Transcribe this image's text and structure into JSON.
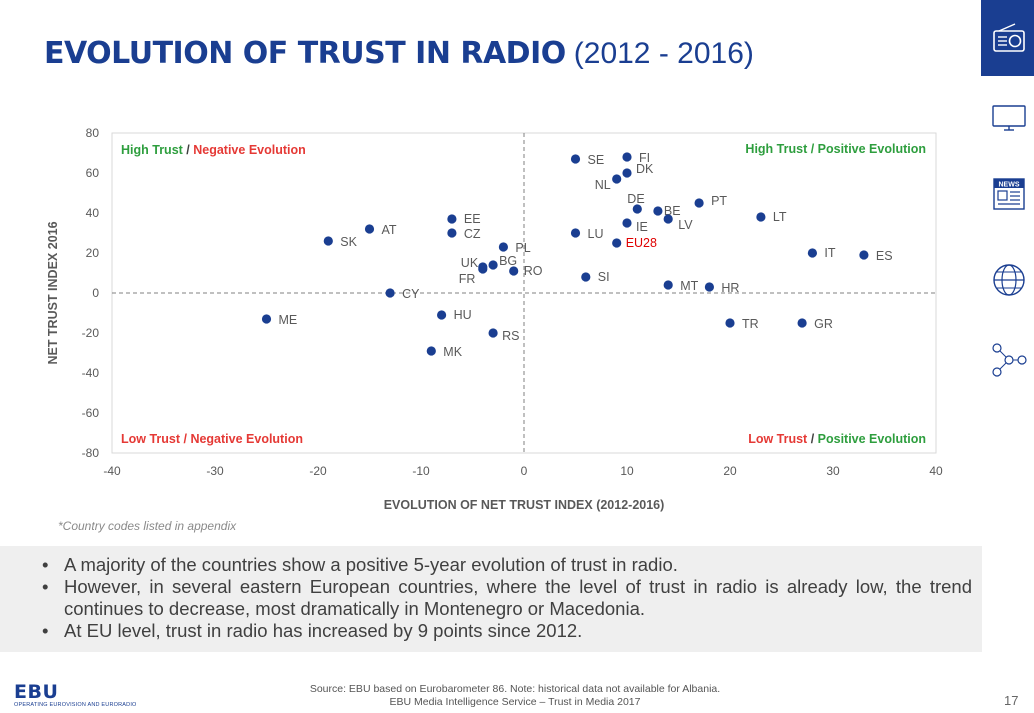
{
  "title": {
    "main": "EVOLUTION OF TRUST IN RADIO",
    "sub": "(2012 - 2016)"
  },
  "sidebar": {
    "icons": [
      "radio-icon",
      "tv-icon",
      "news-icon",
      "globe-icon",
      "social-network-icon"
    ],
    "news_label": "NEWS"
  },
  "chart_data": {
    "type": "scatter",
    "xlabel": "EVOLUTION OF NET TRUST INDEX (2012-2016)",
    "ylabel": "NET TRUST INDEX 2016",
    "xlim": [
      -40,
      40
    ],
    "ylim": [
      -80,
      80
    ],
    "xticks": [
      -40,
      -30,
      -20,
      -10,
      0,
      10,
      20,
      30,
      40
    ],
    "yticks": [
      80,
      60,
      40,
      20,
      0,
      -20,
      -40,
      -60,
      -80
    ],
    "grid": false,
    "reference_lines": {
      "x": 0,
      "y": 0,
      "style": "dashed"
    },
    "point_color": "#1a3e91",
    "highlight_color": "#e00000",
    "quadrant_labels": [
      {
        "pos": "top-left",
        "parts": [
          {
            "text": "High Trust",
            "color": "#2e9e3e"
          },
          {
            "text": " / ",
            "color": "#404040"
          },
          {
            "text": "Negative Evolution",
            "color": "#e53935"
          }
        ]
      },
      {
        "pos": "top-right",
        "parts": [
          {
            "text": "High Trust / Positive Evolution",
            "color": "#2e9e3e"
          }
        ]
      },
      {
        "pos": "bottom-left",
        "parts": [
          {
            "text": "Low Trust / Negative Evolution",
            "color": "#e53935"
          }
        ]
      },
      {
        "pos": "bottom-right",
        "parts": [
          {
            "text": "Low Trust",
            "color": "#e53935"
          },
          {
            "text": " / ",
            "color": "#404040"
          },
          {
            "text": "Positive Evolution",
            "color": "#2e9e3e"
          }
        ]
      }
    ],
    "points": [
      {
        "label": "SE",
        "x": 5,
        "y": 67
      },
      {
        "label": "FI",
        "x": 10,
        "y": 68
      },
      {
        "label": "DK",
        "x": 10,
        "y": 60
      },
      {
        "label": "NL",
        "x": 9,
        "y": 57
      },
      {
        "label": "DE",
        "x": 11,
        "y": 42
      },
      {
        "label": "BE",
        "x": 13,
        "y": 41
      },
      {
        "label": "PT",
        "x": 17,
        "y": 45
      },
      {
        "label": "LT",
        "x": 23,
        "y": 38
      },
      {
        "label": "LV",
        "x": 14,
        "y": 37
      },
      {
        "label": "IE",
        "x": 10,
        "y": 35
      },
      {
        "label": "LU",
        "x": 5,
        "y": 30
      },
      {
        "label": "EU28",
        "x": 9,
        "y": 25,
        "highlight": true
      },
      {
        "label": "IT",
        "x": 28,
        "y": 20
      },
      {
        "label": "ES",
        "x": 33,
        "y": 19
      },
      {
        "label": "SI",
        "x": 6,
        "y": 8
      },
      {
        "label": "MT",
        "x": 14,
        "y": 4
      },
      {
        "label": "HR",
        "x": 18,
        "y": 3
      },
      {
        "label": "TR",
        "x": 20,
        "y": -15
      },
      {
        "label": "GR",
        "x": 27,
        "y": -15
      },
      {
        "label": "EE",
        "x": -7,
        "y": 37
      },
      {
        "label": "CZ",
        "x": -7,
        "y": 30
      },
      {
        "label": "AT",
        "x": -15,
        "y": 32
      },
      {
        "label": "SK",
        "x": -19,
        "y": 26
      },
      {
        "label": "PL",
        "x": -2,
        "y": 23
      },
      {
        "label": "UK",
        "x": -4,
        "y": 12
      },
      {
        "label": "BG",
        "x": -3,
        "y": 14
      },
      {
        "label": "FR",
        "x": -4,
        "y": 13
      },
      {
        "label": "RO",
        "x": -1,
        "y": 11
      },
      {
        "label": "CY",
        "x": -13,
        "y": 0
      },
      {
        "label": "HU",
        "x": -8,
        "y": -11
      },
      {
        "label": "RS",
        "x": -3,
        "y": -20
      },
      {
        "label": "MK",
        "x": -9,
        "y": -29
      },
      {
        "label": "ME",
        "x": -25,
        "y": -13
      }
    ]
  },
  "footnote": "*Country codes listed in appendix",
  "bullets": [
    "A majority of the countries show a positive 5-year evolution of trust in radio.",
    "However, in several eastern European countries, where the level of trust in radio is already low, the trend continues to decrease, most dramatically in Montenegro or Macedonia.",
    "At EU level, trust in radio has increased by 9 points since 2012."
  ],
  "footer": {
    "logo": "EBU",
    "logo_sub": "OPERATING EUROVISION AND EURORADIO",
    "source_line1": "Source: EBU based on Eurobarometer 86. Note: historical data not available for Albania.",
    "source_line2": "EBU Media Intelligence Service – Trust in Media 2017",
    "page_number": "17"
  }
}
